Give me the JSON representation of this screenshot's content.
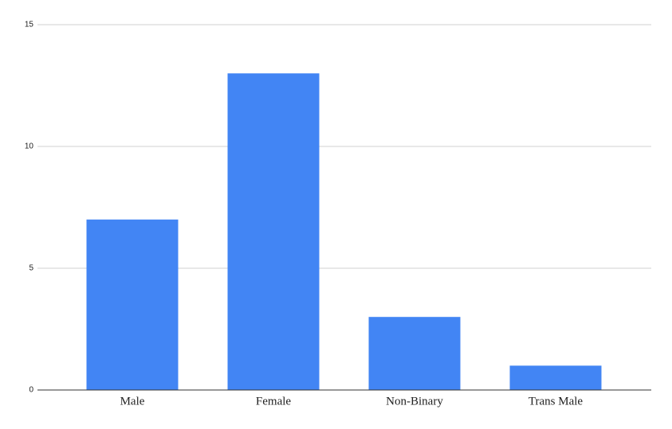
{
  "chart_data": {
    "type": "bar",
    "categories": [
      "Male",
      "Female",
      "Non-Binary",
      "Trans Male"
    ],
    "values": [
      7,
      13,
      3,
      1
    ],
    "color": "#4285f4",
    "ylim": [
      0,
      15
    ],
    "yticks": [
      0,
      5,
      10,
      15
    ],
    "grid": true
  }
}
